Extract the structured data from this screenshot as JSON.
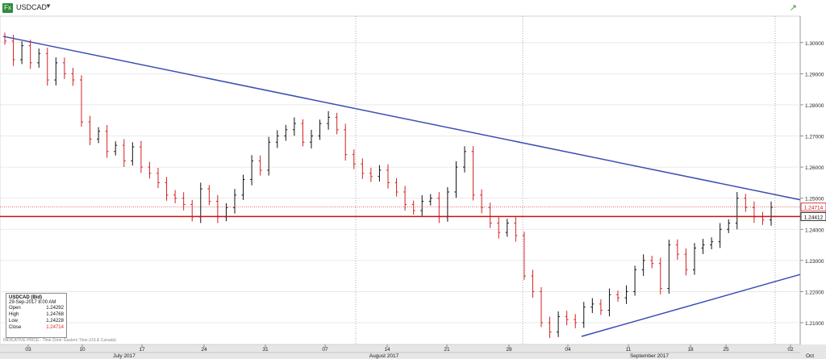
{
  "header": {
    "symbol": "USDCAD",
    "logo_text": "Fx",
    "caret": "▼",
    "trend_icon": "↗"
  },
  "info": {
    "title": "USDCAD (Bid)",
    "datetime": "29-Sep-2017 8:00 AM",
    "rows": [
      {
        "label": "Open",
        "value": "1.24292"
      },
      {
        "label": "High",
        "value": "1.24768"
      },
      {
        "label": "Low",
        "value": "1.24228"
      },
      {
        "label": "Close",
        "value": "1.24714"
      }
    ]
  },
  "footnote": "INDICATIVE PRICE - Time Zone: Eastern Time (US & Canada)",
  "colors": {
    "up": "#111111",
    "down": "#d42020",
    "trend": "#3a4fb0",
    "level": "#cc1111"
  },
  "chart_data": {
    "type": "bar",
    "ylim": [
      1.203,
      1.3085
    ],
    "y_ticks": [
      "1.30000",
      "1.29000",
      "1.28000",
      "1.27000",
      "1.26000",
      "1.25000",
      "1.24000",
      "1.23000",
      "1.22000",
      "1.21000"
    ],
    "x_ticks": [
      "03",
      "10",
      "17",
      "24",
      "31",
      "07",
      "14",
      "21",
      "28",
      "04",
      "11",
      "18",
      "25",
      "02"
    ],
    "months": [
      "July 2017",
      "August 2017",
      "September 2017",
      "Oct"
    ],
    "price_labels": [
      {
        "value": "1.24714",
        "color": "#cc1111"
      },
      {
        "value": "1.24412",
        "color": "#000000"
      }
    ],
    "levels": [
      {
        "name": "horizontal support",
        "y": 1.24412,
        "style": "solid"
      },
      {
        "name": "last close",
        "y": 1.24714,
        "style": "dotted"
      }
    ],
    "trendlines": [
      {
        "name": "descending resistance",
        "start": {
          "x": "Jul 3",
          "y": 1.302
        },
        "end": {
          "x": "Oct 2",
          "y": 1.2495
        }
      },
      {
        "name": "ascending support",
        "start": {
          "x": "Sep 5",
          "y": 1.2056
        },
        "end": {
          "x": "Oct 2",
          "y": 1.2255
        }
      }
    ],
    "series": [
      {
        "name": "USDCAD (Bid)",
        "path": [
          1.3005,
          1.2945,
          1.299,
          1.2935,
          1.2965,
          1.288,
          1.2935,
          1.29,
          1.288,
          1.2745,
          1.269,
          1.2715,
          1.265,
          1.267,
          1.262,
          1.2665,
          1.26,
          1.258,
          1.255,
          1.251,
          1.25,
          1.248,
          1.244,
          1.253,
          1.249,
          1.244,
          1.247,
          1.251,
          1.256,
          1.262,
          1.259,
          1.268,
          1.27,
          1.272,
          1.274,
          1.268,
          1.27,
          1.274,
          1.276,
          1.272,
          1.264,
          1.261,
          1.258,
          1.257,
          1.259,
          1.255,
          1.252,
          1.248,
          1.246,
          1.249,
          1.25,
          1.244,
          1.252,
          1.26,
          1.265,
          1.251,
          1.247,
          1.242,
          1.239,
          1.242,
          1.238,
          1.225,
          1.22,
          1.21,
          1.207,
          1.212,
          1.211,
          1.21,
          1.215,
          1.216,
          1.214,
          1.219,
          1.218,
          1.22,
          1.227,
          1.23,
          1.229,
          1.221,
          1.235,
          1.232,
          1.227,
          1.234,
          1.235,
          1.236,
          1.24,
          1.242,
          1.25,
          1.247,
          1.244,
          1.243,
          1.2471
        ]
      }
    ]
  }
}
